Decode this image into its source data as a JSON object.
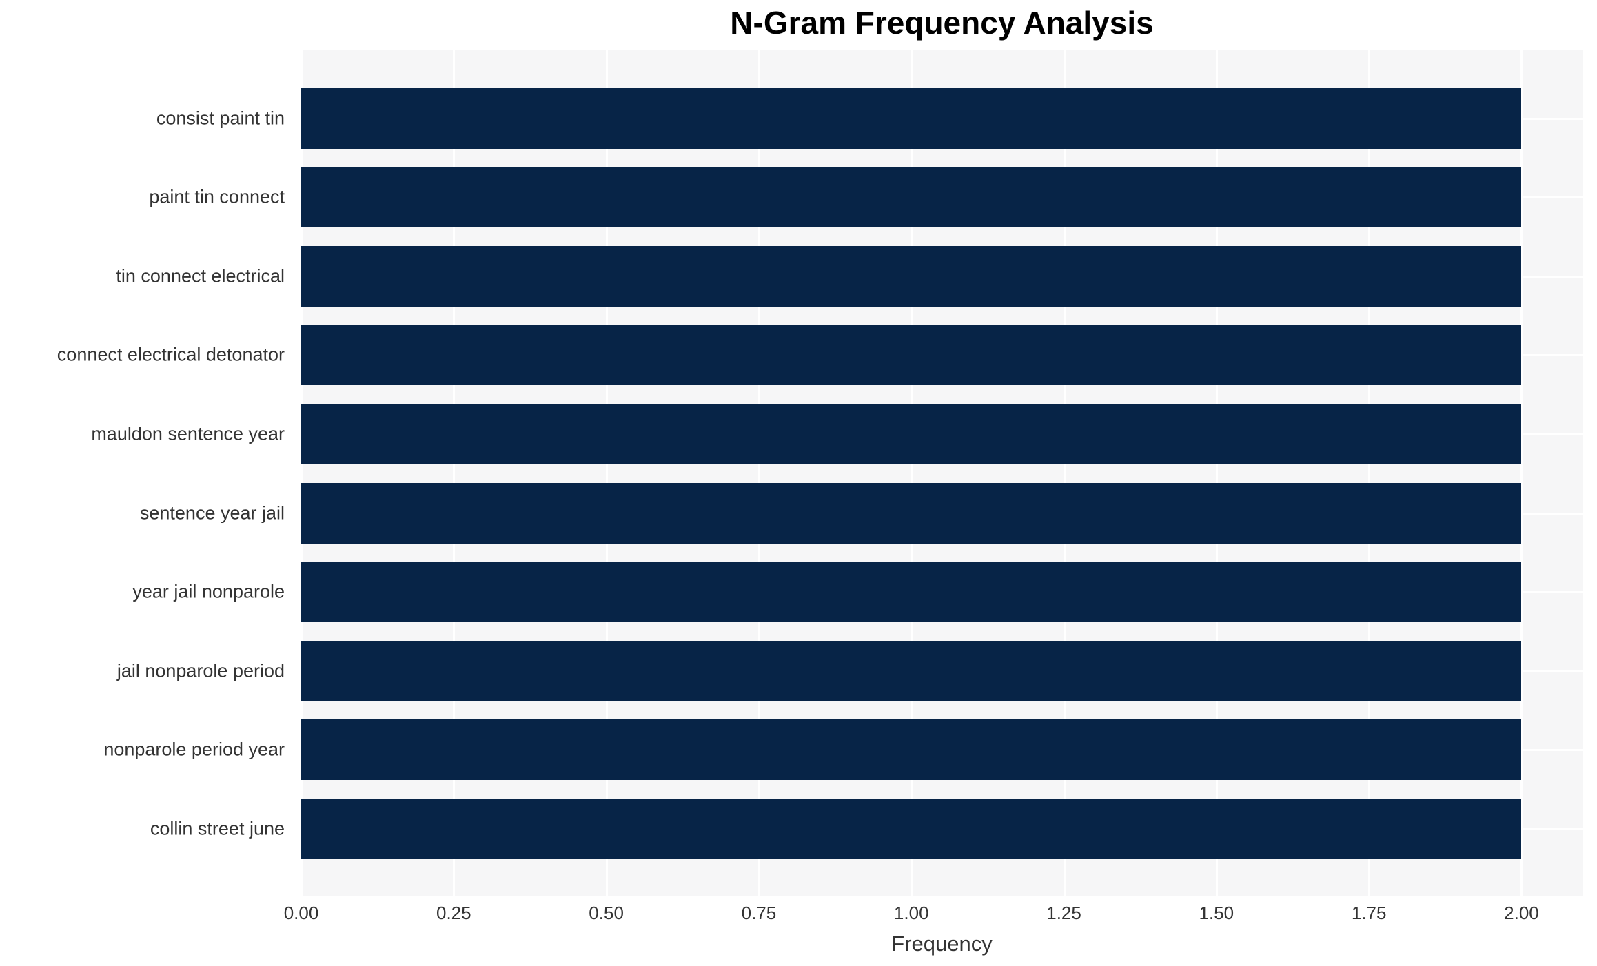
{
  "chart_data": {
    "type": "bar",
    "orientation": "horizontal",
    "title": "N-Gram Frequency Analysis",
    "xlabel": "Frequency",
    "ylabel": "",
    "categories": [
      "consist paint tin",
      "paint tin connect",
      "tin connect electrical",
      "connect electrical detonator",
      "mauldon sentence year",
      "sentence year jail",
      "year jail nonparole",
      "jail nonparole period",
      "nonparole period year",
      "collin street june"
    ],
    "values": [
      2,
      2,
      2,
      2,
      2,
      2,
      2,
      2,
      2,
      2
    ],
    "xticks": [
      0.0,
      0.25,
      0.5,
      0.75,
      1.0,
      1.25,
      1.5,
      1.75,
      2.0
    ],
    "xtick_labels": [
      "0.00",
      "0.25",
      "0.50",
      "0.75",
      "1.00",
      "1.25",
      "1.50",
      "1.75",
      "2.00"
    ],
    "xlim": [
      0,
      2.1
    ],
    "grid": true,
    "legend": false,
    "colors": {
      "bar": "#072447",
      "plot_background": "#f6f6f7",
      "gridline": "#ffffff",
      "title_text": "#000000",
      "axis_text": "#333333"
    }
  }
}
